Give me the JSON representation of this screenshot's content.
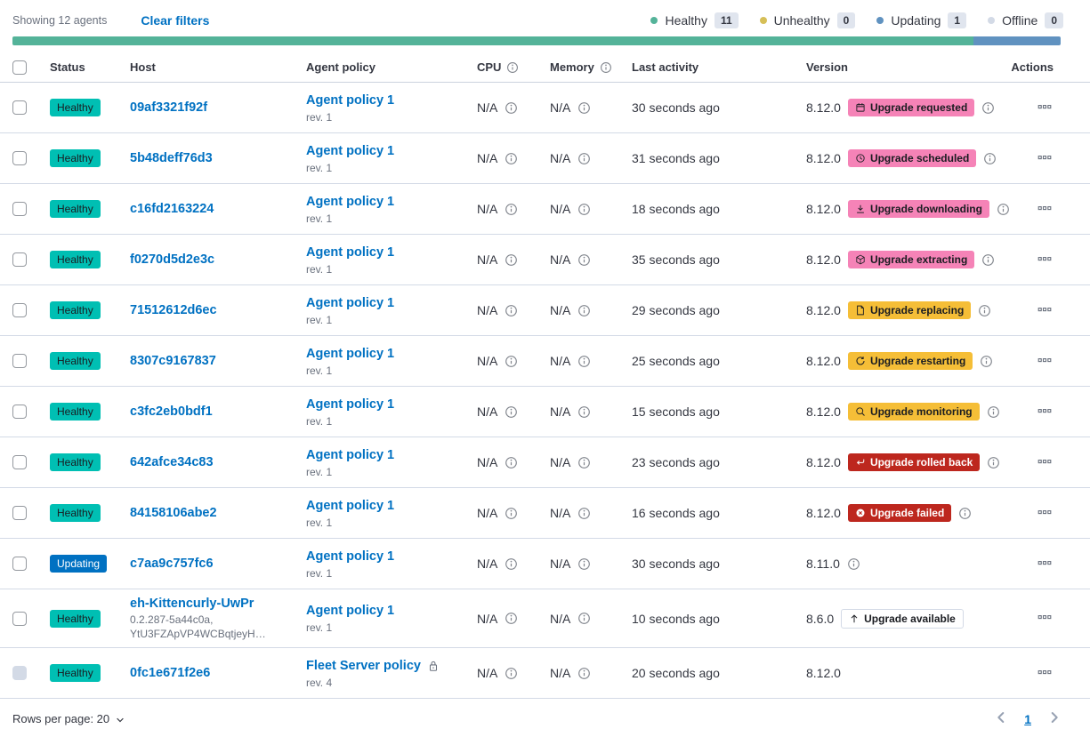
{
  "toolbar": {
    "showing": "Showing 12 agents",
    "clear_filters": "Clear filters",
    "legend": [
      {
        "label": "Healthy",
        "count": "11",
        "color": "#54b399"
      },
      {
        "label": "Unhealthy",
        "count": "0",
        "color": "#d6bf57"
      },
      {
        "label": "Updating",
        "count": "1",
        "color": "#6092c0"
      },
      {
        "label": "Offline",
        "count": "0",
        "color": "#d3dae6"
      }
    ]
  },
  "health_bar": {
    "segments": [
      {
        "status": "healthy",
        "color": "#54b399",
        "fraction": 0.9167
      },
      {
        "status": "updating",
        "color": "#6092c0",
        "fraction": 0.0833
      }
    ]
  },
  "colors": {
    "link": "#0071c2",
    "healthy_badge": "#00bfb3",
    "updating_badge": "#0071c2",
    "pink_badge": "#f583b7",
    "warning_badge": "#f5be37",
    "danger_badge": "#bd271e",
    "row_border": "#d3dae6"
  },
  "table": {
    "columns": {
      "status": "Status",
      "host": "Host",
      "policy": "Agent policy",
      "cpu": "CPU",
      "memory": "Memory",
      "last_activity": "Last activity",
      "version": "Version",
      "actions": "Actions"
    },
    "rows": [
      {
        "status": "Healthy",
        "status_variant": "healthy",
        "host": "09af3321f92f",
        "host_sub": [],
        "policy": "Agent policy 1",
        "policy_rev": "rev. 1",
        "policy_locked": false,
        "cpu": "N/A",
        "memory": "N/A",
        "last_activity": "30 seconds ago",
        "version": "8.12.0",
        "upgrade_badge": {
          "label": "Upgrade requested",
          "variant": "pink",
          "icon": "calendar"
        },
        "version_info": true,
        "checkbox_disabled": false
      },
      {
        "status": "Healthy",
        "status_variant": "healthy",
        "host": "5b48deff76d3",
        "host_sub": [],
        "policy": "Agent policy 1",
        "policy_rev": "rev. 1",
        "policy_locked": false,
        "cpu": "N/A",
        "memory": "N/A",
        "last_activity": "31 seconds ago",
        "version": "8.12.0",
        "upgrade_badge": {
          "label": "Upgrade scheduled",
          "variant": "pink",
          "icon": "clock"
        },
        "version_info": true,
        "checkbox_disabled": false
      },
      {
        "status": "Healthy",
        "status_variant": "healthy",
        "host": "c16fd2163224",
        "host_sub": [],
        "policy": "Agent policy 1",
        "policy_rev": "rev. 1",
        "policy_locked": false,
        "cpu": "N/A",
        "memory": "N/A",
        "last_activity": "18 seconds ago",
        "version": "8.12.0",
        "upgrade_badge": {
          "label": "Upgrade downloading",
          "variant": "pink",
          "icon": "download"
        },
        "version_info": true,
        "checkbox_disabled": false
      },
      {
        "status": "Healthy",
        "status_variant": "healthy",
        "host": "f0270d5d2e3c",
        "host_sub": [],
        "policy": "Agent policy 1",
        "policy_rev": "rev. 1",
        "policy_locked": false,
        "cpu": "N/A",
        "memory": "N/A",
        "last_activity": "35 seconds ago",
        "version": "8.12.0",
        "upgrade_badge": {
          "label": "Upgrade extracting",
          "variant": "pink",
          "icon": "package"
        },
        "version_info": true,
        "checkbox_disabled": false
      },
      {
        "status": "Healthy",
        "status_variant": "healthy",
        "host": "71512612d6ec",
        "host_sub": [],
        "policy": "Agent policy 1",
        "policy_rev": "rev. 1",
        "policy_locked": false,
        "cpu": "N/A",
        "memory": "N/A",
        "last_activity": "29 seconds ago",
        "version": "8.12.0",
        "upgrade_badge": {
          "label": "Upgrade replacing",
          "variant": "warning",
          "icon": "document"
        },
        "version_info": true,
        "checkbox_disabled": false
      },
      {
        "status": "Healthy",
        "status_variant": "healthy",
        "host": "8307c9167837",
        "host_sub": [],
        "policy": "Agent policy 1",
        "policy_rev": "rev. 1",
        "policy_locked": false,
        "cpu": "N/A",
        "memory": "N/A",
        "last_activity": "25 seconds ago",
        "version": "8.12.0",
        "upgrade_badge": {
          "label": "Upgrade restarting",
          "variant": "warning",
          "icon": "refresh"
        },
        "version_info": true,
        "checkbox_disabled": false
      },
      {
        "status": "Healthy",
        "status_variant": "healthy",
        "host": "c3fc2eb0bdf1",
        "host_sub": [],
        "policy": "Agent policy 1",
        "policy_rev": "rev. 1",
        "policy_locked": false,
        "cpu": "N/A",
        "memory": "N/A",
        "last_activity": "15 seconds ago",
        "version": "8.12.0",
        "upgrade_badge": {
          "label": "Upgrade monitoring",
          "variant": "warning",
          "icon": "inspect"
        },
        "version_info": true,
        "checkbox_disabled": false
      },
      {
        "status": "Healthy",
        "status_variant": "healthy",
        "host": "642afce34c83",
        "host_sub": [],
        "policy": "Agent policy 1",
        "policy_rev": "rev. 1",
        "policy_locked": false,
        "cpu": "N/A",
        "memory": "N/A",
        "last_activity": "23 seconds ago",
        "version": "8.12.0",
        "upgrade_badge": {
          "label": "Upgrade rolled back",
          "variant": "danger",
          "icon": "return"
        },
        "version_info": true,
        "checkbox_disabled": false
      },
      {
        "status": "Healthy",
        "status_variant": "healthy",
        "host": "84158106abe2",
        "host_sub": [],
        "policy": "Agent policy 1",
        "policy_rev": "rev. 1",
        "policy_locked": false,
        "cpu": "N/A",
        "memory": "N/A",
        "last_activity": "16 seconds ago",
        "version": "8.12.0",
        "upgrade_badge": {
          "label": "Upgrade failed",
          "variant": "danger",
          "icon": "error"
        },
        "version_info": true,
        "checkbox_disabled": false
      },
      {
        "status": "Updating",
        "status_variant": "updating",
        "host": "c7aa9c757fc6",
        "host_sub": [],
        "policy": "Agent policy 1",
        "policy_rev": "rev. 1",
        "policy_locked": false,
        "cpu": "N/A",
        "memory": "N/A",
        "last_activity": "30 seconds ago",
        "version": "8.11.0",
        "upgrade_badge": null,
        "version_info": true,
        "checkbox_disabled": false
      },
      {
        "status": "Healthy",
        "status_variant": "healthy",
        "host": "eh-Kittencurly-UwPr",
        "host_sub": [
          "0.2.287-5a44c0a,",
          "YtU3FZApVP4WCBqtjeyH…"
        ],
        "policy": "Agent policy 1",
        "policy_rev": "rev. 1",
        "policy_locked": false,
        "cpu": "N/A",
        "memory": "N/A",
        "last_activity": "10 seconds ago",
        "version": "8.6.0",
        "upgrade_badge": {
          "label": "Upgrade available",
          "variant": "hollow",
          "icon": "arrowUp"
        },
        "version_info": false,
        "checkbox_disabled": false
      },
      {
        "status": "Healthy",
        "status_variant": "healthy",
        "host": "0fc1e671f2e6",
        "host_sub": [],
        "policy": "Fleet Server policy",
        "policy_rev": "rev. 4",
        "policy_locked": true,
        "cpu": "N/A",
        "memory": "N/A",
        "last_activity": "20 seconds ago",
        "version": "8.12.0",
        "upgrade_badge": null,
        "version_info": false,
        "checkbox_disabled": true
      }
    ]
  },
  "footer": {
    "rows_per_page": "Rows per page: 20",
    "page": "1"
  }
}
